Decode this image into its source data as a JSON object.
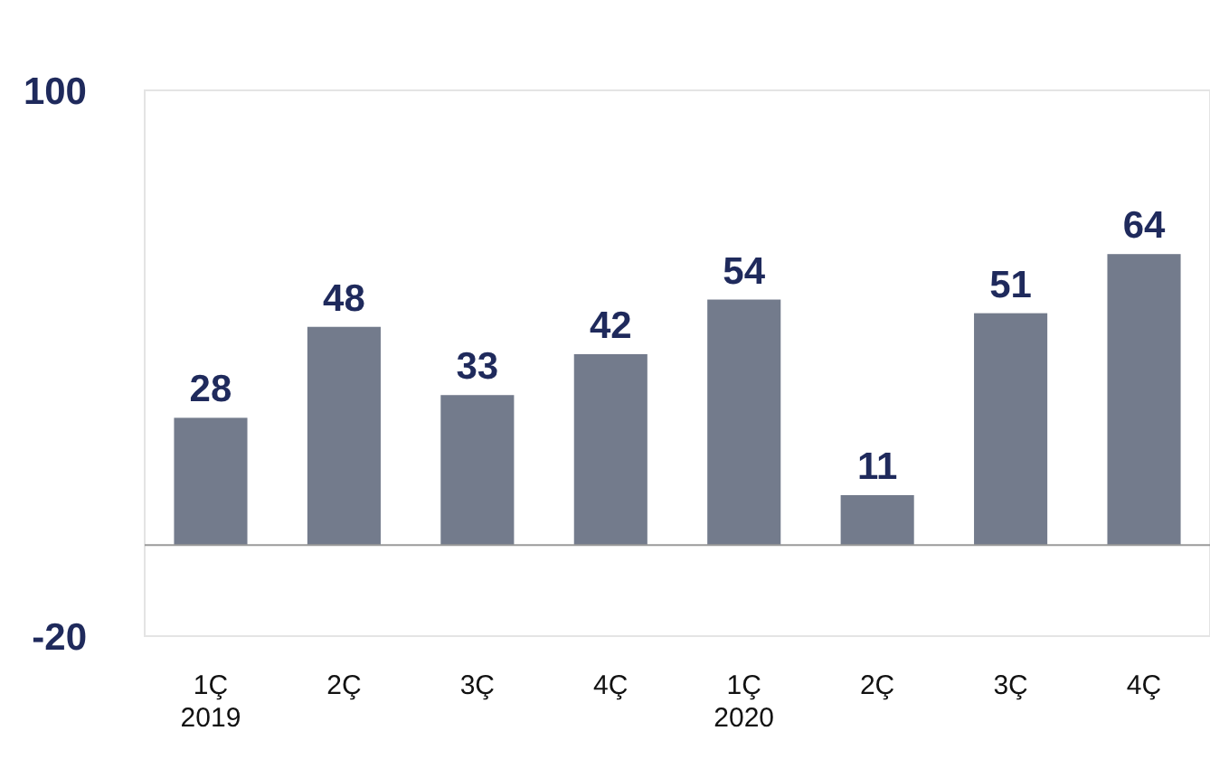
{
  "chart_data": {
    "type": "bar",
    "categories": [
      "1Ç\n2019",
      "2Ç",
      "3Ç",
      "4Ç",
      "1Ç\n2020",
      "2Ç",
      "3Ç",
      "4Ç"
    ],
    "values": [
      28,
      48,
      33,
      42,
      54,
      11,
      51,
      64
    ],
    "color": "#737b8c",
    "ylim": [
      -20,
      100
    ],
    "yticks": [
      -20,
      100
    ],
    "data_labels": true,
    "ref_lines": [
      {
        "axis": "y",
        "value": 0,
        "color": "#9a9a9a"
      }
    ]
  }
}
